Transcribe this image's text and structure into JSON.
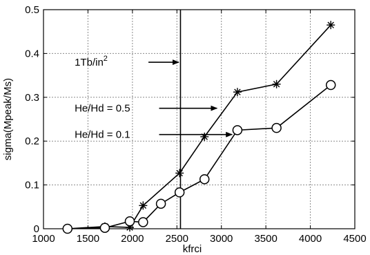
{
  "chart_data": {
    "type": "line",
    "xlabel": "kfrci",
    "ylabel": "sigma(Mpeak/Ms)",
    "xlim": [
      1000,
      4500
    ],
    "ylim": [
      0,
      0.5
    ],
    "xticks": [
      1000,
      1500,
      2000,
      2500,
      3000,
      3500,
      4000,
      4500
    ],
    "yticks": [
      0,
      0.1,
      0.2,
      0.3,
      0.4,
      0.5
    ],
    "xtick_labels": [
      "1000",
      "1500",
      "2000",
      "2500",
      "3000",
      "3500",
      "4000",
      "4500"
    ],
    "ytick_labels": [
      "0",
      "0.1",
      "0.2",
      "0.3",
      "0.4",
      "0.5"
    ],
    "grid": true,
    "series": [
      {
        "marker": "asterisk",
        "x": [
          1270,
          1690,
          1970,
          2120,
          2530,
          2810,
          3180,
          3620,
          4230
        ],
        "y": [
          0.0,
          0.005,
          0.003,
          0.053,
          0.127,
          0.21,
          0.312,
          0.33,
          0.465
        ]
      },
      {
        "marker": "circle",
        "x": [
          1270,
          1690,
          1970,
          2120,
          2320,
          2530,
          2810,
          3180,
          3620,
          4230
        ],
        "y": [
          0.0,
          0.002,
          0.017,
          0.015,
          0.057,
          0.083,
          0.113,
          0.225,
          0.23,
          0.328
        ]
      }
    ],
    "vline": {
      "x": 2540
    },
    "annotations": [
      {
        "text_main": "1Tb/in",
        "text_sup": "2",
        "x_text": 1350,
        "y": 0.38,
        "x_arrow_start": 2180,
        "x_arrow_end": 2520
      },
      {
        "text_main": "He/Hd = 0.5",
        "x_text": 1350,
        "y": 0.275,
        "x_arrow_start": 2300,
        "x_arrow_end": 2950
      },
      {
        "text_main": "He/Hd = 0.1",
        "x_text": 1350,
        "y": 0.215,
        "x_arrow_start": 2300,
        "x_arrow_end": 3120
      }
    ]
  }
}
